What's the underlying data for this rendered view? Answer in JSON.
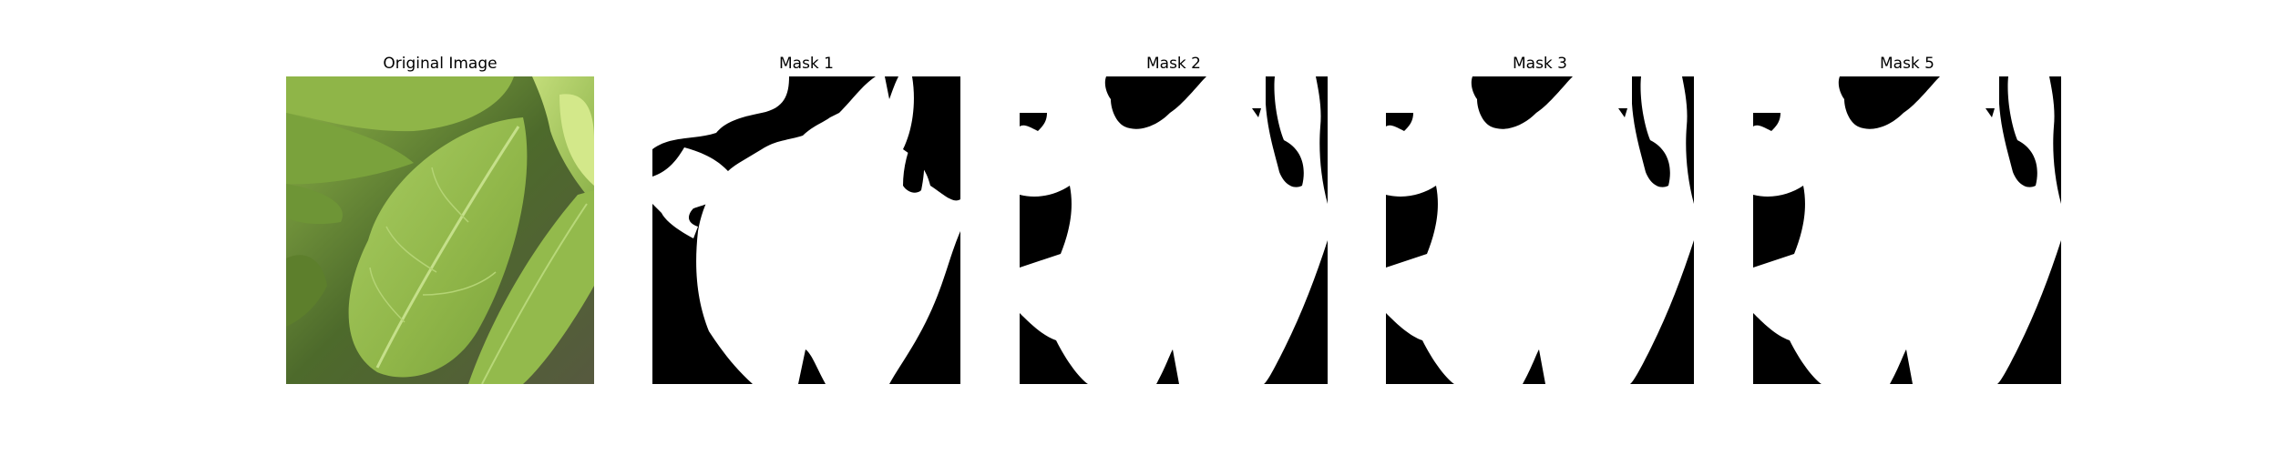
{
  "figure": {
    "panels": [
      {
        "title": "Original Image",
        "content": "photo of green leaves"
      },
      {
        "title": "Mask 1",
        "content": "binary segmentation mask"
      },
      {
        "title": "Mask 2",
        "content": "binary segmentation mask"
      },
      {
        "title": "Mask 3",
        "content": "binary segmentation mask"
      },
      {
        "title": "Mask 5",
        "content": "binary segmentation mask"
      }
    ]
  },
  "colors": {
    "mask_foreground": "#ffffff",
    "mask_background": "#000000",
    "leaf_light": "#b7d66a",
    "leaf_mid": "#8fb548",
    "leaf_dark": "#5d7f2c",
    "shadow": "#3a4a25"
  }
}
